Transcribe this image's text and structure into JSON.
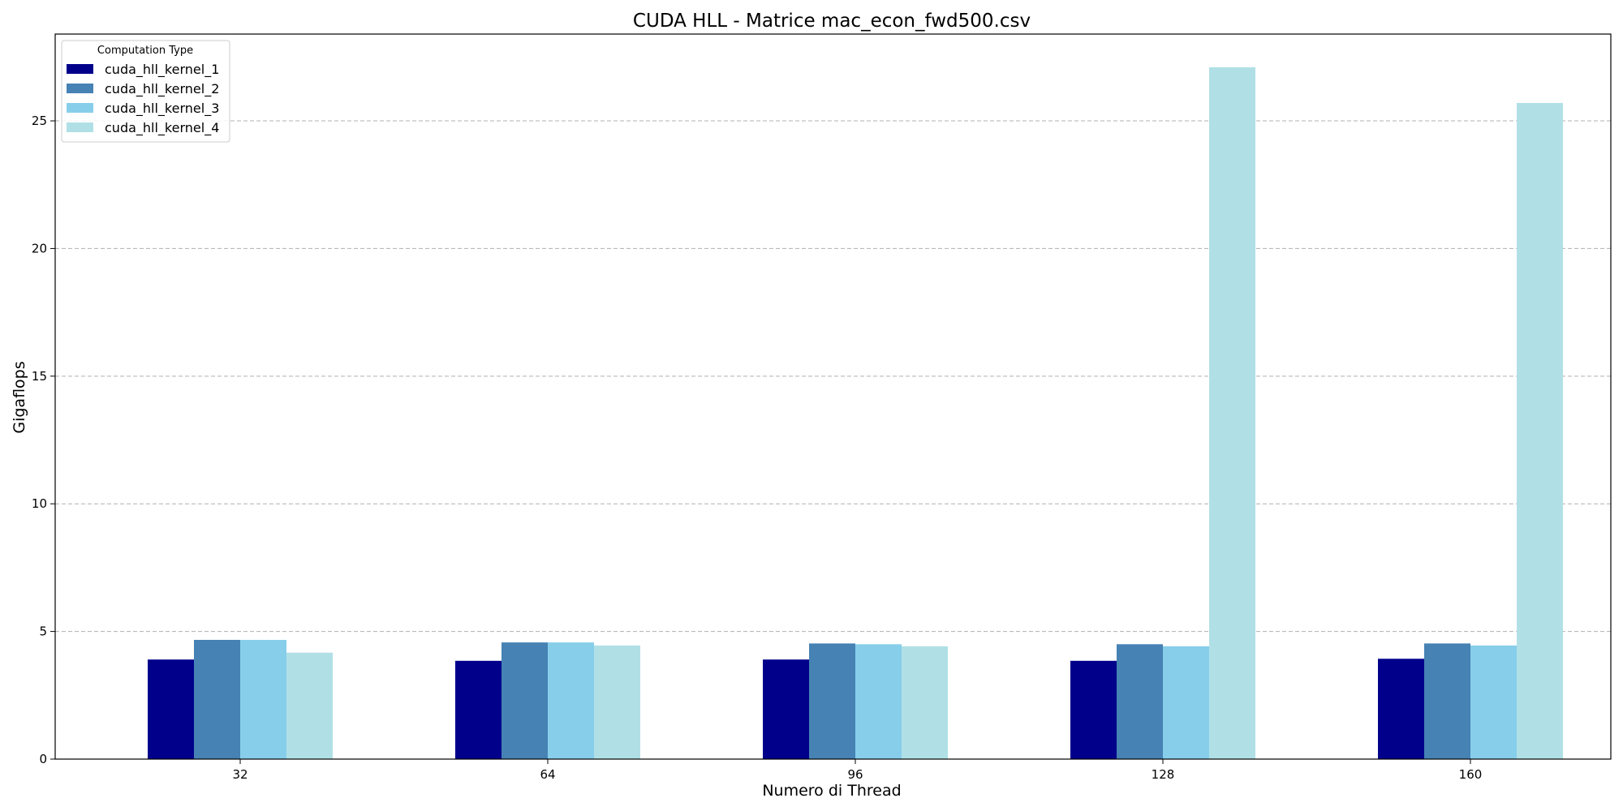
{
  "chart_data": {
    "type": "bar",
    "title": "CUDA HLL - Matrice mac_econ_fwd500.csv",
    "xlabel": "Numero di Thread",
    "ylabel": "Gigaflops",
    "categories": [
      "32",
      "64",
      "96",
      "128",
      "160"
    ],
    "ylim": [
      0,
      28.4
    ],
    "yticks": [
      0,
      5,
      10,
      15,
      20,
      25
    ],
    "grid": "y-dashed",
    "legend": {
      "title": "Computation Type",
      "position": "top-left"
    },
    "series": [
      {
        "name": "cuda_hll_kernel_1",
        "color": "#00008b",
        "values": [
          3.9,
          3.85,
          3.9,
          3.85,
          3.93
        ]
      },
      {
        "name": "cuda_hll_kernel_2",
        "color": "#4682b4",
        "values": [
          4.67,
          4.57,
          4.53,
          4.5,
          4.53
        ]
      },
      {
        "name": "cuda_hll_kernel_3",
        "color": "#87ceeb",
        "values": [
          4.67,
          4.57,
          4.5,
          4.42,
          4.45
        ]
      },
      {
        "name": "cuda_hll_kernel_4",
        "color": "#b0e0e6",
        "values": [
          4.17,
          4.45,
          4.42,
          27.1,
          25.7
        ]
      }
    ]
  }
}
